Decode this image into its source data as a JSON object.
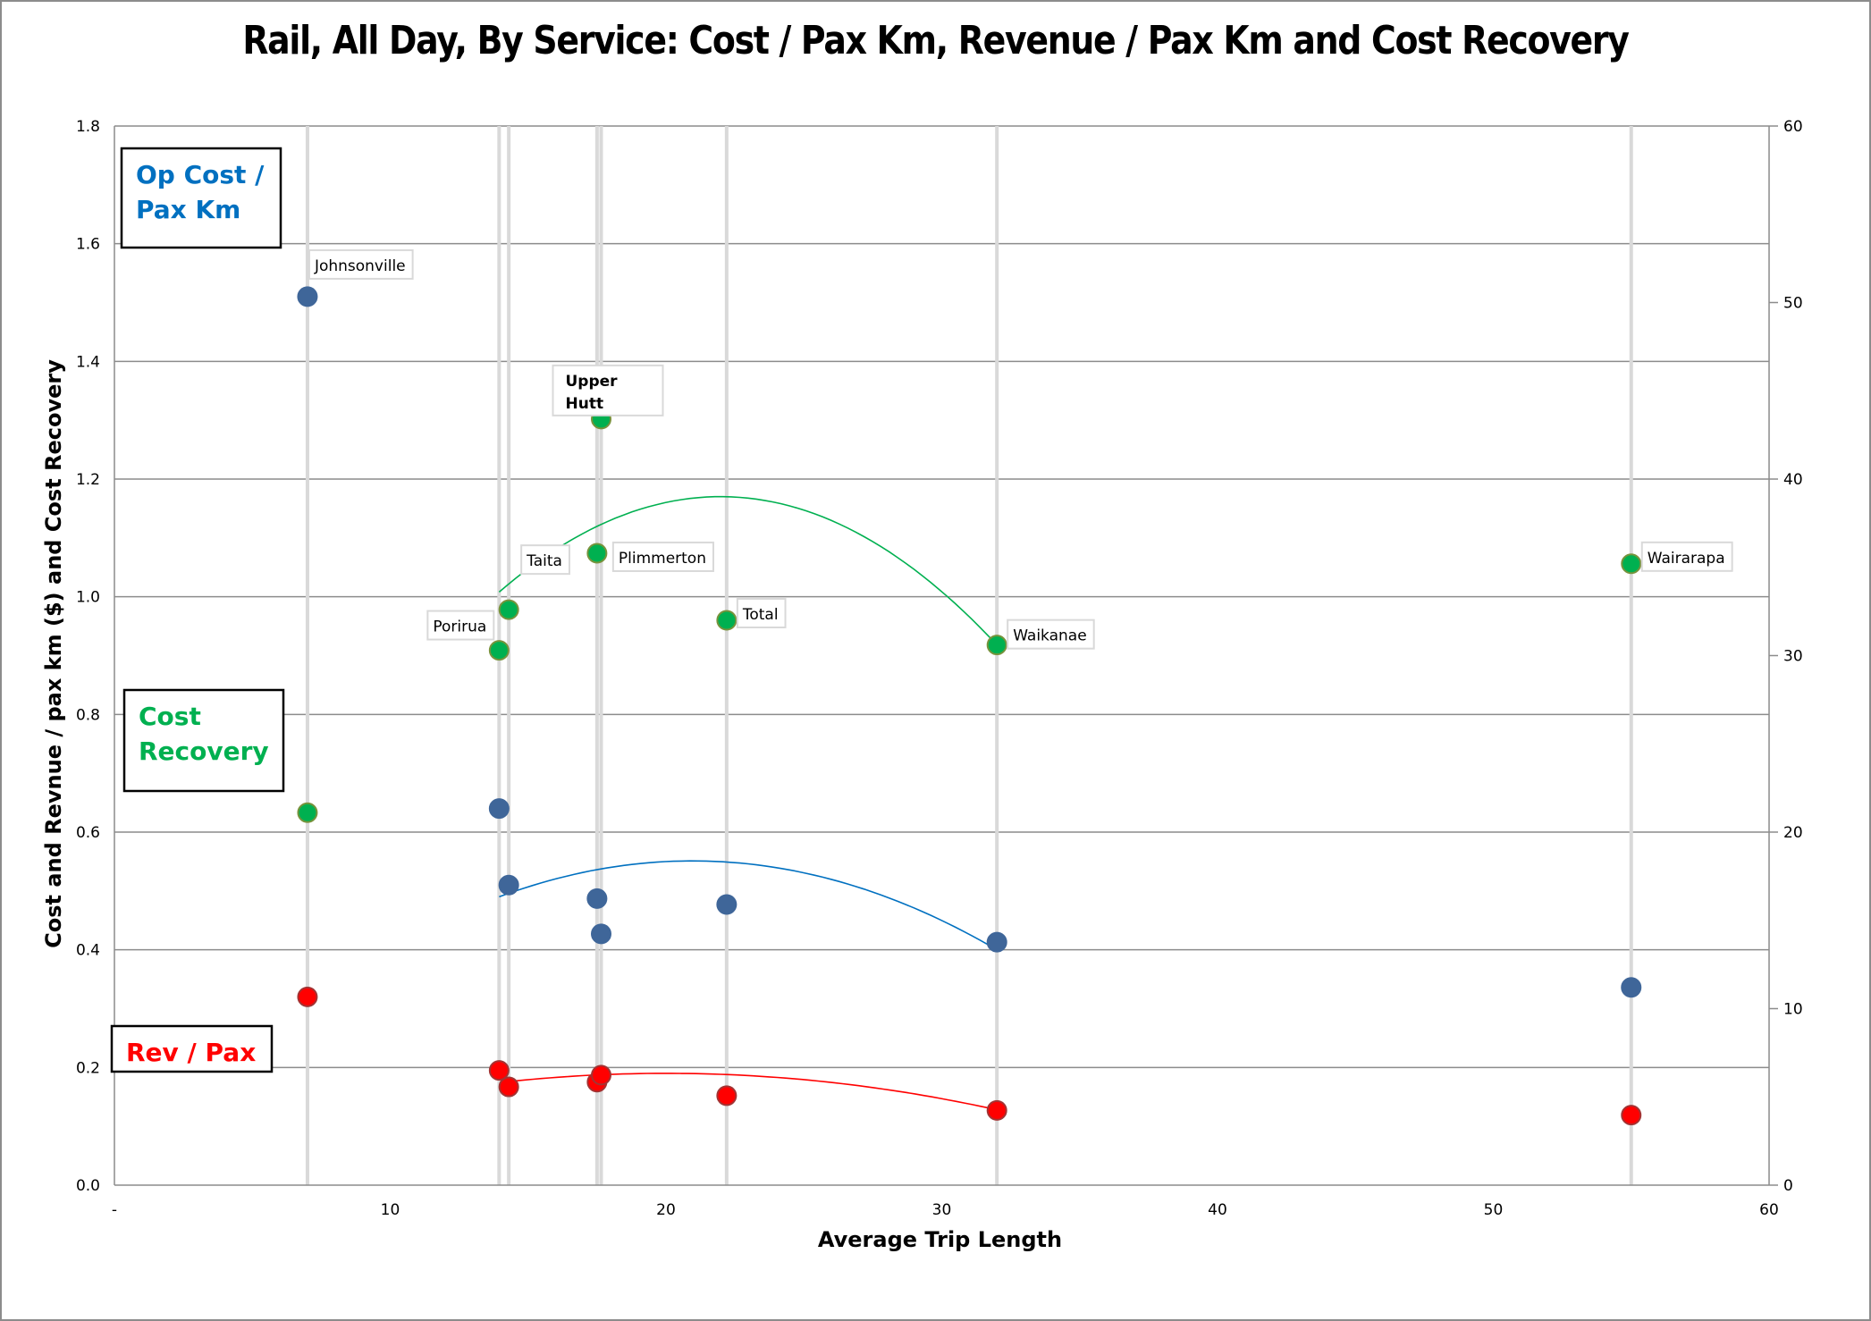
{
  "chart_data": {
    "type": "scatter",
    "title": "Rail, All Day, By Service: Cost / Pax Km, Revenue / Pax Km and Cost Recovery",
    "xlabel": "Average Trip Length",
    "ylabel": "Cost and Revnue / pax km ($) and Cost Recovery",
    "y2label": "",
    "xlim": [
      0,
      60
    ],
    "ylim": [
      0,
      1.8
    ],
    "y2lim": [
      0,
      60
    ],
    "x_ticks": [
      {
        "v": 0,
        "label": "-"
      },
      {
        "v": 10,
        "label": "10"
      },
      {
        "v": 20,
        "label": "20"
      },
      {
        "v": 30,
        "label": "30"
      },
      {
        "v": 40,
        "label": "40"
      },
      {
        "v": 50,
        "label": "50"
      },
      {
        "v": 60,
        "label": "60"
      }
    ],
    "y_ticks": [
      {
        "v": 0,
        "label": "0.0"
      },
      {
        "v": 0.2,
        "label": "0.2"
      },
      {
        "v": 0.4,
        "label": "0.4"
      },
      {
        "v": 0.6,
        "label": "0.6"
      },
      {
        "v": 0.8,
        "label": "0.8"
      },
      {
        "v": 1.0,
        "label": "1.0"
      },
      {
        "v": 1.2,
        "label": "1.2"
      },
      {
        "v": 1.4,
        "label": "1.4"
      },
      {
        "v": 1.6,
        "label": "1.6"
      },
      {
        "v": 1.8,
        "label": "1.8"
      }
    ],
    "y2_ticks": [
      {
        "v": 0,
        "label": "0"
      },
      {
        "v": 10,
        "label": "10"
      },
      {
        "v": 20,
        "label": "20"
      },
      {
        "v": 30,
        "label": "30"
      },
      {
        "v": 40,
        "label": "40"
      },
      {
        "v": 50,
        "label": "50"
      },
      {
        "v": 60,
        "label": "60"
      }
    ],
    "grid": "horizontal",
    "services": [
      {
        "name": "Johnsonville",
        "x": 7.0,
        "op_cost": 1.51,
        "revenue": 0.32,
        "cost_recovery": 21.1,
        "label_series": "op_cost",
        "label_bold": false
      },
      {
        "name": "Porirua",
        "x": 13.95,
        "op_cost": 0.64,
        "revenue": 0.195,
        "cost_recovery": 30.3,
        "label_series": "cost_recovery",
        "label_bold": false
      },
      {
        "name": "Taita",
        "x": 14.3,
        "op_cost": 0.51,
        "revenue": 0.167,
        "cost_recovery": 32.6,
        "label_series": "cost_recovery",
        "label_bold": false
      },
      {
        "name": "Plimmerton",
        "x": 17.5,
        "op_cost": 0.487,
        "revenue": 0.175,
        "cost_recovery": 35.8,
        "label_series": "cost_recovery",
        "label_bold": false
      },
      {
        "name": "Upper Hutt",
        "x": 17.65,
        "op_cost": 0.427,
        "revenue": 0.187,
        "cost_recovery": 43.4,
        "label_series": "cost_recovery",
        "label_bold": true
      },
      {
        "name": "Total",
        "x": 22.2,
        "op_cost": 0.477,
        "revenue": 0.152,
        "cost_recovery": 32.0,
        "label_series": "cost_recovery",
        "label_bold": false
      },
      {
        "name": "Waikanae",
        "x": 32.0,
        "op_cost": 0.413,
        "revenue": 0.127,
        "cost_recovery": 30.6,
        "label_series": "cost_recovery",
        "label_bold": false
      },
      {
        "name": "Wairarapa",
        "x": 55.0,
        "op_cost": 0.336,
        "revenue": 0.119,
        "cost_recovery": 35.2,
        "label_series": "cost_recovery",
        "label_bold": false
      }
    ],
    "series": [
      {
        "key": "op_cost",
        "name": "Op Cost / Pax Km",
        "axis": "left",
        "color": "#3f6699",
        "trend_color": "#0070c0",
        "trend": {
          "x_range": [
            13.95,
            32.0
          ],
          "points": [
            [
              13.95,
              0.49
            ],
            [
              20.8,
              0.551
            ],
            [
              32.0,
              0.4
            ]
          ]
        }
      },
      {
        "key": "revenue",
        "name": "Rev / Pax",
        "axis": "left",
        "color": "#ff0000",
        "trend_color": "#ff0000",
        "trend": {
          "x_range": [
            14.3,
            32.0
          ],
          "points": [
            [
              14.3,
              0.176
            ],
            [
              20.3,
              0.19
            ],
            [
              32.0,
              0.128
            ]
          ]
        }
      },
      {
        "key": "cost_recovery",
        "name": "Cost Recovery",
        "axis": "right",
        "color": "#00b050",
        "trend_color": "#00b050",
        "trend": {
          "x_range": [
            13.95,
            32.0
          ],
          "points": [
            [
              13.95,
              33.6
            ],
            [
              22.2,
              39.0
            ],
            [
              32.0,
              30.6
            ]
          ]
        }
      }
    ],
    "callouts": [
      {
        "key": "op_cost",
        "lines": [
          "Op Cost /",
          "Pax Km"
        ],
        "color": "#0070c0"
      },
      {
        "key": "cost_recovery",
        "lines": [
          "Cost",
          "Recovery"
        ],
        "color": "#00b050"
      },
      {
        "key": "revenue",
        "lines": [
          "Rev / Pax"
        ],
        "color": "#ff0000"
      }
    ],
    "legend": "none"
  }
}
